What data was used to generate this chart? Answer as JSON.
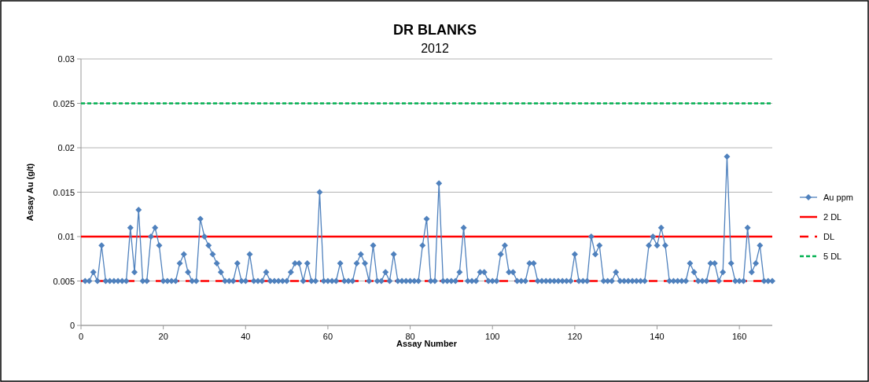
{
  "chart_data": {
    "type": "line",
    "title": "DR BLANKS",
    "subtitle": "2012",
    "xlabel": "Assay Number",
    "ylabel": "Assay Au (g/t)",
    "xlim": [
      0,
      168
    ],
    "xticks": [
      0,
      20,
      40,
      60,
      80,
      100,
      120,
      140,
      160
    ],
    "ylim": [
      0,
      0.03
    ],
    "yticks": [
      0,
      0.005,
      0.01,
      0.015,
      0.02,
      0.025,
      0.03
    ],
    "grid": "y",
    "legend": "right",
    "marker": "diamond",
    "line_style": "solid",
    "x": [
      1,
      2,
      3,
      4,
      5,
      6,
      7,
      8,
      9,
      10,
      11,
      12,
      13,
      14,
      15,
      16,
      17,
      18,
      19,
      20,
      21,
      22,
      23,
      24,
      25,
      26,
      27,
      28,
      29,
      30,
      31,
      32,
      33,
      34,
      35,
      36,
      37,
      38,
      39,
      40,
      41,
      42,
      43,
      44,
      45,
      46,
      47,
      48,
      49,
      50,
      51,
      52,
      53,
      54,
      55,
      56,
      57,
      58,
      59,
      60,
      61,
      62,
      63,
      64,
      65,
      66,
      67,
      68,
      69,
      70,
      71,
      72,
      73,
      74,
      75,
      76,
      77,
      78,
      79,
      80,
      81,
      82,
      83,
      84,
      85,
      86,
      87,
      88,
      89,
      90,
      91,
      92,
      93,
      94,
      95,
      96,
      97,
      98,
      99,
      100,
      101,
      102,
      103,
      104,
      105,
      106,
      107,
      108,
      109,
      110,
      111,
      112,
      113,
      114,
      115,
      116,
      117,
      118,
      119,
      120,
      121,
      122,
      123,
      124,
      125,
      126,
      127,
      128,
      129,
      130,
      131,
      132,
      133,
      134,
      135,
      136,
      137,
      138,
      139,
      140,
      141,
      142,
      143,
      144,
      145,
      146,
      147,
      148,
      149,
      150,
      151,
      152,
      153,
      154,
      155,
      156,
      157,
      158,
      159,
      160,
      161,
      162,
      163,
      164,
      165,
      166,
      167,
      168
    ],
    "series": [
      {
        "name": "Au ppm",
        "color": "#4f81bd",
        "values": [
          0.005,
          0.005,
          0.006,
          0.005,
          0.009,
          0.005,
          0.005,
          0.005,
          0.005,
          0.005,
          0.005,
          0.011,
          0.006,
          0.013,
          0.005,
          0.005,
          0.01,
          0.011,
          0.009,
          0.005,
          0.005,
          0.005,
          0.005,
          0.007,
          0.008,
          0.006,
          0.005,
          0.005,
          0.012,
          0.01,
          0.009,
          0.008,
          0.007,
          0.006,
          0.005,
          0.005,
          0.005,
          0.007,
          0.005,
          0.005,
          0.008,
          0.005,
          0.005,
          0.005,
          0.006,
          0.005,
          0.005,
          0.005,
          0.005,
          0.005,
          0.006,
          0.007,
          0.007,
          0.005,
          0.007,
          0.005,
          0.005,
          0.015,
          0.005,
          0.005,
          0.005,
          0.005,
          0.007,
          0.005,
          0.005,
          0.005,
          0.007,
          0.008,
          0.007,
          0.005,
          0.009,
          0.005,
          0.005,
          0.006,
          0.005,
          0.008,
          0.005,
          0.005,
          0.005,
          0.005,
          0.005,
          0.005,
          0.009,
          0.012,
          0.005,
          0.005,
          0.016,
          0.005,
          0.005,
          0.005,
          0.005,
          0.006,
          0.011,
          0.005,
          0.005,
          0.005,
          0.006,
          0.006,
          0.005,
          0.005,
          0.005,
          0.008,
          0.009,
          0.006,
          0.006,
          0.005,
          0.005,
          0.005,
          0.007,
          0.007,
          0.005,
          0.005,
          0.005,
          0.005,
          0.005,
          0.005,
          0.005,
          0.005,
          0.005,
          0.008,
          0.005,
          0.005,
          0.005,
          0.01,
          0.008,
          0.009,
          0.005,
          0.005,
          0.005,
          0.006,
          0.005,
          0.005,
          0.005,
          0.005,
          0.005,
          0.005,
          0.005,
          0.009,
          0.01,
          0.009,
          0.011,
          0.009,
          0.005,
          0.005,
          0.005,
          0.005,
          0.005,
          0.007,
          0.006,
          0.005,
          0.005,
          0.005,
          0.007,
          0.007,
          0.005,
          0.006,
          0.019,
          0.007,
          0.005,
          0.005,
          0.005,
          0.011,
          0.006,
          0.007,
          0.009,
          0.005,
          0.005,
          0.005
        ]
      }
    ],
    "ref_lines": [
      {
        "axis": "y",
        "value": 0.01,
        "label": "2 DL",
        "color": "#ff0000",
        "line_style": "solid"
      },
      {
        "axis": "y",
        "value": 0.005,
        "label": "DL",
        "color": "#ff0000",
        "line_style": "dashed"
      },
      {
        "axis": "y",
        "value": 0.025,
        "label": "5 DL",
        "color": "#00b050",
        "line_style": "dotted"
      }
    ]
  }
}
